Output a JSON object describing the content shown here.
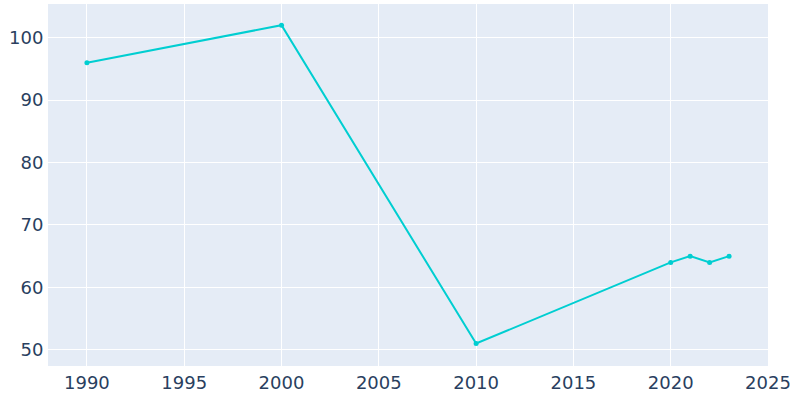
{
  "chart_data": {
    "type": "line",
    "x": [
      1990,
      2000,
      2010,
      2020,
      2021,
      2022,
      2023
    ],
    "values": [
      96,
      102,
      51,
      64,
      65,
      64,
      65
    ],
    "color": "#00ced1",
    "marker": "circle",
    "xlim": [
      1988,
      2025
    ],
    "xticks": [
      1990,
      1995,
      2000,
      2005,
      2010,
      2015,
      2020,
      2025
    ],
    "ylim": [
      47.4,
      105.4
    ],
    "yticks": [
      50,
      60,
      70,
      80,
      90,
      100
    ],
    "grid": true
  }
}
